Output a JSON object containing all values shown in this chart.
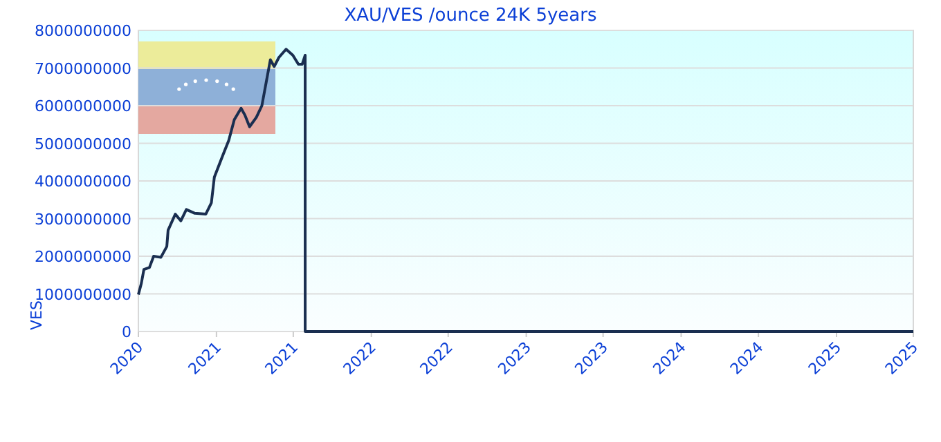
{
  "chart_data": {
    "type": "line",
    "title": "XAU/VES /ounce 24K 5years",
    "ylabel": "VES",
    "x": [
      "2020-07-01",
      "2020-07-08",
      "2020-07-14",
      "2020-07-27",
      "2020-08-06",
      "2020-08-23",
      "2020-09-06",
      "2020-09-09",
      "2020-09-26",
      "2020-10-09",
      "2020-10-22",
      "2020-11-11",
      "2020-12-07",
      "2020-12-20",
      "2020-12-27",
      "2021-01-17",
      "2021-01-30",
      "2021-02-12",
      "2021-02-28",
      "2021-03-09",
      "2021-03-20",
      "2021-04-05",
      "2021-04-18",
      "2021-04-29",
      "2021-05-08",
      "2021-05-17",
      "2021-05-28",
      "2021-06-14",
      "2021-06-30",
      "2021-07-13",
      "2021-07-22",
      "2021-07-29",
      "2021-07-29",
      "2025-07-01"
    ],
    "series": [
      {
        "color": "#1a2e50",
        "values": [
          980000000,
          1280000000,
          1650000000,
          1700000000,
          2000000000,
          1970000000,
          2260000000,
          2690000000,
          3120000000,
          2940000000,
          3240000000,
          3140000000,
          3120000000,
          3420000000,
          4100000000,
          4710000000,
          5080000000,
          5630000000,
          5930000000,
          5750000000,
          5440000000,
          5690000000,
          6000000000,
          6670000000,
          7220000000,
          7040000000,
          7280000000,
          7500000000,
          7340000000,
          7100000000,
          7100000000,
          7340000000,
          0,
          0
        ]
      }
    ],
    "xlim": [
      "2020-07",
      "2025-07"
    ],
    "xticks": [
      {
        "value": "2020-07",
        "label": "2020"
      },
      {
        "value": "2021-01",
        "label": "2021"
      },
      {
        "value": "2021-07",
        "label": "2021"
      },
      {
        "value": "2022-01",
        "label": "2022"
      },
      {
        "value": "2022-07",
        "label": "2022"
      },
      {
        "value": "2023-01",
        "label": "2023"
      },
      {
        "value": "2023-07",
        "label": "2023"
      },
      {
        "value": "2024-01",
        "label": "2024"
      },
      {
        "value": "2024-07",
        "label": "2024"
      },
      {
        "value": "2025-01",
        "label": "2025"
      },
      {
        "value": "2025-07",
        "label": "2025"
      }
    ],
    "ylim": [
      0,
      8000000000
    ],
    "yticks": [
      0,
      1000000000,
      2000000000,
      3000000000,
      4000000000,
      5000000000,
      6000000000,
      7000000000,
      8000000000
    ],
    "grid": "y",
    "marker": "none",
    "line_style": "solid"
  }
}
